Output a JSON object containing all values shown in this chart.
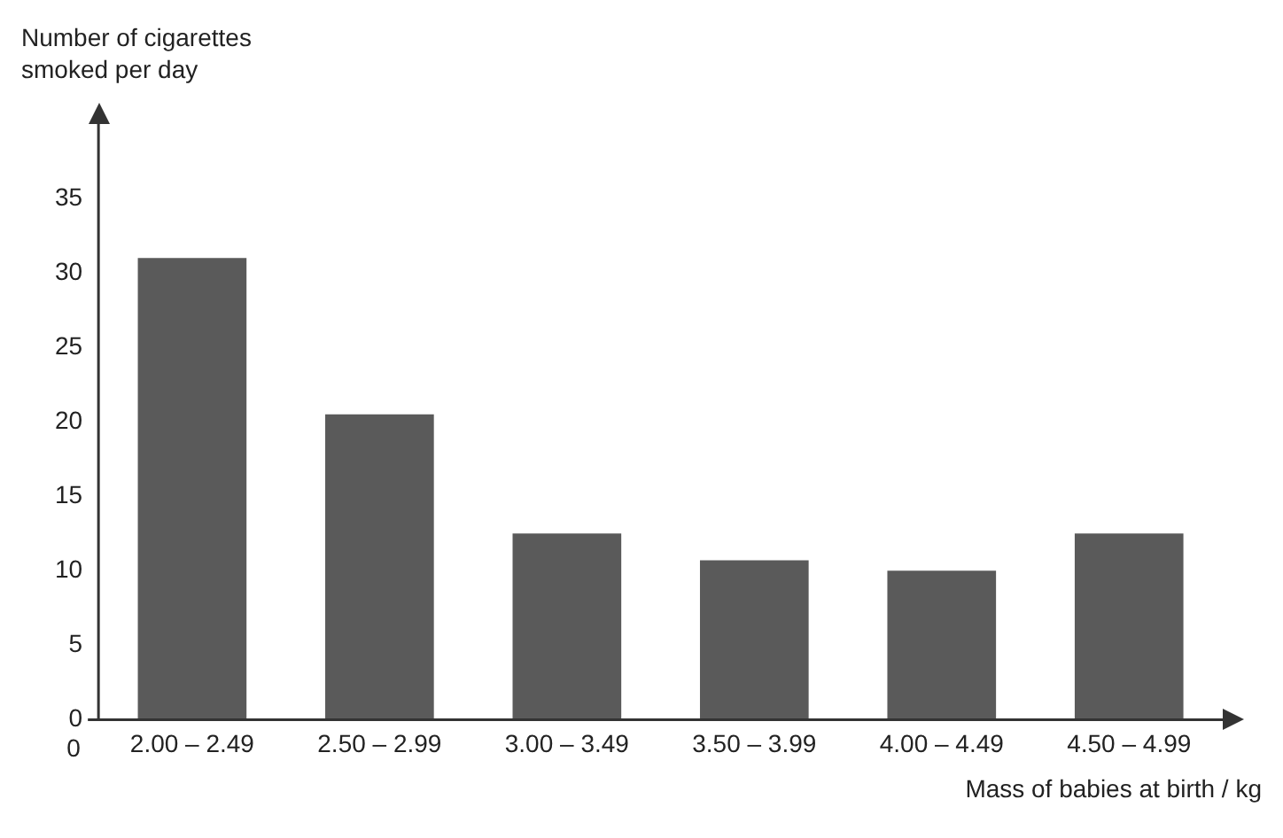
{
  "chart_data": {
    "type": "bar",
    "xlabel": "Mass of babies at birth / kg",
    "ylabel": "Number of cigarettes smoked per day",
    "categories": [
      "2.00 – 2.49",
      "2.50 – 2.99",
      "3.00 – 3.49",
      "3.50 – 3.99",
      "4.00 – 4.49",
      "4.50 – 4.99"
    ],
    "values": [
      31,
      20.5,
      12.5,
      10.7,
      10,
      12.5
    ],
    "color": "#5a5a5a",
    "ylim": [
      0,
      40
    ],
    "yticks": [
      0,
      5,
      10,
      15,
      20,
      25,
      30,
      35
    ],
    "grid": false,
    "legend": false,
    "annotations": [
      "0"
    ]
  }
}
